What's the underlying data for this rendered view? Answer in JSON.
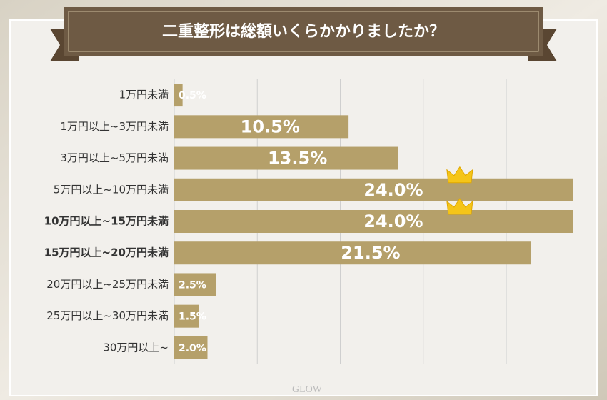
{
  "chart_data": {
    "type": "hbar",
    "title": "二重整形は総額いくらかかりましたか？",
    "categories": [
      "1万円未満",
      "1万円以上~3万円未満",
      "3万円以上~5万円未満",
      "5万円以上~10万円未満",
      "10万円以上~15万円未満",
      "15万円以上~20万円未満",
      "20万円以上~25万円未満",
      "25万円以上~30万円未満",
      "30万円以上~"
    ],
    "values": [
      0.5,
      10.5,
      13.5,
      24.0,
      24.0,
      21.5,
      2.5,
      1.5,
      2.0
    ],
    "value_labels": [
      "0.5%",
      "10.5%",
      "13.5%",
      "24.0%",
      "24.0%",
      "21.5%",
      "2.5%",
      "1.5%",
      "2.0%"
    ],
    "color": "#b5a06a",
    "highlighted_categories": [
      4,
      5
    ],
    "highlight_color": "#c8102e",
    "xlim": [
      0,
      24
    ],
    "xticks": [
      5,
      10,
      15,
      20
    ],
    "grid": true,
    "logo": "GLOW"
  }
}
